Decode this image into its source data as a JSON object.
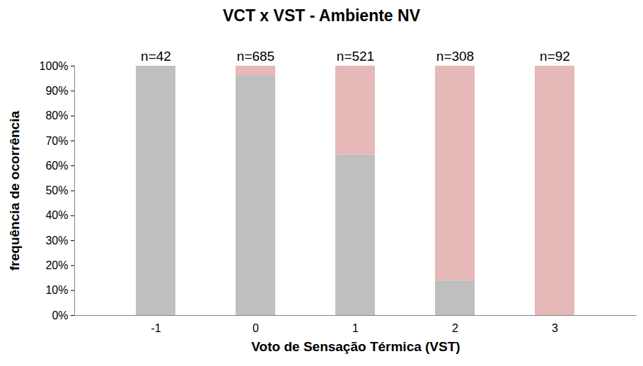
{
  "chart_data": {
    "type": "bar",
    "title": "VCT x VST - Ambiente NV",
    "x_label": "Voto de Sensação Térmica (VST)",
    "y_label": "frequência de ocorrência",
    "categories": [
      "-1",
      "0",
      "1",
      "2",
      "3"
    ],
    "series": [
      {
        "color": "#bfbfbf",
        "values": [
          100,
          96,
          64.5,
          14,
          0
        ]
      },
      {
        "color": "#e6b8b7",
        "values": [
          0,
          4,
          35.5,
          86,
          100
        ]
      }
    ],
    "annotations": [
      {
        "x": "-1",
        "text": "n=42"
      },
      {
        "x": "0",
        "text": "n=685"
      },
      {
        "x": "1",
        "text": "n=521"
      },
      {
        "x": "2",
        "text": "n=308"
      },
      {
        "x": "3",
        "text": "n=92"
      }
    ],
    "stacked": true,
    "grid": false,
    "ylim": [
      0,
      100
    ],
    "yticks": [
      {
        "value": 0,
        "label": "0%"
      },
      {
        "value": 10,
        "label": "10%"
      },
      {
        "value": 20,
        "label": "20%"
      },
      {
        "value": 30,
        "label": "30%"
      },
      {
        "value": 40,
        "label": "40%"
      },
      {
        "value": 50,
        "label": "50%"
      },
      {
        "value": 60,
        "label": "60%"
      },
      {
        "value": 70,
        "label": "70%"
      },
      {
        "value": 80,
        "label": "80%"
      },
      {
        "value": 90,
        "label": "90%"
      },
      {
        "value": 100,
        "label": "100%"
      }
    ]
  }
}
